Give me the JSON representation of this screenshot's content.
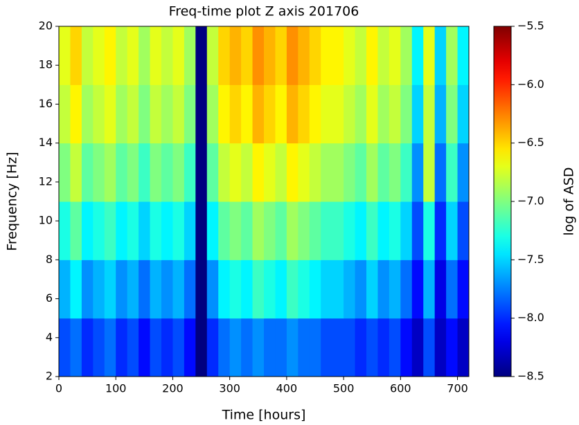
{
  "chart_data": {
    "type": "heatmap",
    "title": "Freq-time plot Z axis 201706",
    "xlabel": "Time [hours]",
    "ylabel": "Frequency [Hz]",
    "xlim": [
      0,
      720
    ],
    "ylim": [
      2,
      20
    ],
    "xticks": [
      0,
      100,
      200,
      300,
      400,
      500,
      600,
      700
    ],
    "yticks": [
      2,
      4,
      6,
      8,
      10,
      12,
      14,
      16,
      18,
      20
    ],
    "x_edges": [
      0,
      20,
      40,
      60,
      80,
      100,
      120,
      140,
      160,
      180,
      200,
      220,
      240,
      260,
      280,
      300,
      320,
      340,
      360,
      380,
      400,
      420,
      440,
      460,
      480,
      500,
      520,
      540,
      560,
      580,
      600,
      620,
      640,
      660,
      680,
      700,
      720
    ],
    "y_edges": [
      2,
      5,
      8,
      11,
      14,
      17,
      20
    ],
    "values": [
      [
        -7.9,
        -7.8,
        -8.0,
        -7.9,
        -7.8,
        -8.0,
        -7.9,
        -8.1,
        -7.9,
        -8.0,
        -7.9,
        -8.1,
        -8.5,
        -8.0,
        -7.8,
        -7.7,
        -7.8,
        -7.7,
        -7.8,
        -7.8,
        -7.7,
        -7.8,
        -7.8,
        -7.9,
        -7.9,
        -7.9,
        -8.0,
        -7.9,
        -8.0,
        -7.9,
        -8.1,
        -8.3,
        -7.9,
        -8.3,
        -8.1,
        -8.3
      ],
      [
        -7.6,
        -7.4,
        -7.7,
        -7.6,
        -7.5,
        -7.7,
        -7.6,
        -7.8,
        -7.6,
        -7.7,
        -7.6,
        -7.8,
        -8.5,
        -7.7,
        -7.4,
        -7.3,
        -7.4,
        -7.2,
        -7.3,
        -7.4,
        -7.2,
        -7.3,
        -7.4,
        -7.5,
        -7.5,
        -7.6,
        -7.7,
        -7.5,
        -7.7,
        -7.6,
        -7.8,
        -8.1,
        -7.6,
        -8.2,
        -7.8,
        -8.1
      ],
      [
        -7.3,
        -7.1,
        -7.4,
        -7.3,
        -7.2,
        -7.4,
        -7.3,
        -7.5,
        -7.3,
        -7.4,
        -7.3,
        -7.5,
        -8.5,
        -7.4,
        -7.1,
        -7.0,
        -7.1,
        -6.9,
        -7.0,
        -7.1,
        -6.9,
        -7.0,
        -7.1,
        -7.2,
        -7.2,
        -7.3,
        -7.4,
        -7.2,
        -7.4,
        -7.3,
        -7.5,
        -7.9,
        -7.3,
        -8.0,
        -7.5,
        -7.9
      ],
      [
        -7.0,
        -6.8,
        -7.1,
        -7.0,
        -6.9,
        -7.1,
        -7.0,
        -7.2,
        -7.0,
        -7.1,
        -7.0,
        -7.2,
        -8.5,
        -7.1,
        -6.8,
        -6.7,
        -6.8,
        -6.6,
        -6.7,
        -6.8,
        -6.6,
        -6.7,
        -6.8,
        -6.9,
        -6.9,
        -7.0,
        -7.1,
        -6.9,
        -7.1,
        -7.0,
        -7.2,
        -7.7,
        -6.8,
        -7.8,
        -7.2,
        -7.7
      ],
      [
        -6.8,
        -6.6,
        -6.9,
        -6.8,
        -6.7,
        -6.9,
        -6.8,
        -7.0,
        -6.8,
        -6.9,
        -6.8,
        -7.0,
        -8.5,
        -6.9,
        -6.6,
        -6.5,
        -6.6,
        -6.4,
        -6.5,
        -6.6,
        -6.4,
        -6.5,
        -6.6,
        -6.7,
        -6.7,
        -6.8,
        -6.9,
        -6.7,
        -6.9,
        -6.8,
        -7.0,
        -7.5,
        -6.8,
        -7.6,
        -7.0,
        -7.5
      ],
      [
        -6.7,
        -6.5,
        -6.8,
        -6.7,
        -6.6,
        -6.8,
        -6.7,
        -6.9,
        -6.7,
        -6.8,
        -6.7,
        -6.9,
        -8.5,
        -6.8,
        -6.5,
        -6.4,
        -6.5,
        -6.3,
        -6.4,
        -6.5,
        -6.3,
        -6.4,
        -6.5,
        -6.6,
        -6.6,
        -6.7,
        -6.8,
        -6.6,
        -6.8,
        -6.7,
        -6.9,
        -7.4,
        -6.7,
        -7.5,
        -6.9,
        -7.4
      ]
    ],
    "colormap": "jet",
    "clim": [
      -8.5,
      -5.5
    ],
    "colorbar_label": "log of ASD",
    "colorbar_ticks": [
      {
        "value": -5.5,
        "label": "−5.5"
      },
      {
        "value": -6.0,
        "label": "−6.0"
      },
      {
        "value": -6.5,
        "label": "−6.5"
      },
      {
        "value": -7.0,
        "label": "−7.0"
      },
      {
        "value": -7.5,
        "label": "−7.5"
      },
      {
        "value": -8.0,
        "label": "−8.0"
      },
      {
        "value": -8.5,
        "label": "−8.5"
      }
    ]
  }
}
